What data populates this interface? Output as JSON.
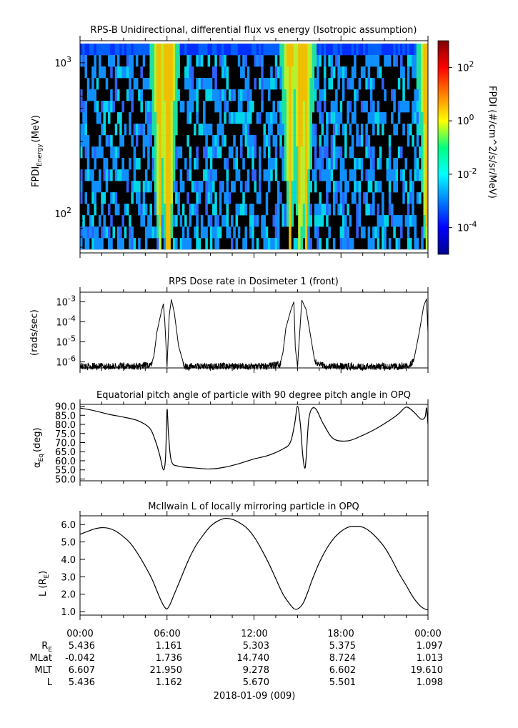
{
  "chart_data": [
    {
      "type": "heatmap",
      "title": "RPS-B  Unidirectional, differential flux vs energy (Isotropic assumption)",
      "ylabel": "FPDI",
      "ylabel_sub": "Energy",
      "ylabel_unit": "(MeV)",
      "y_scale": "log",
      "ylim": [
        55,
        1400
      ],
      "y_ticks": [
        {
          "value": 100,
          "base": "10",
          "exp": "2"
        },
        {
          "value": 1000,
          "base": "10",
          "exp": "3"
        }
      ],
      "colorbar": {
        "label": "FPDI (#/cm^2/s/sr/MeV)",
        "scale": "log",
        "range": [
          1e-05,
          1000
        ],
        "ticks": [
          {
            "value": 0.0001,
            "base": "10",
            "exp": "-4"
          },
          {
            "value": 0.01,
            "base": "10",
            "exp": "-2"
          },
          {
            "value": 1,
            "base": "10",
            "exp": "0"
          },
          {
            "value": 100,
            "base": "10",
            "exp": "2"
          }
        ]
      },
      "bright_bands_hours": [
        5.4,
        5.9,
        6.1,
        14.4,
        15.1,
        15.5,
        23.8
      ]
    },
    {
      "type": "line",
      "title": "RPS  Dose rate in Dosimeter 1 (front)",
      "ylabel": "(rads/sec)",
      "y_scale": "log",
      "ylim": [
        5e-07,
        0.003
      ],
      "y_ticks": [
        {
          "value": 1e-06,
          "base": "10",
          "exp": "-6"
        },
        {
          "value": 1e-05,
          "base": "10",
          "exp": "-5"
        },
        {
          "value": 0.0001,
          "base": "10",
          "exp": "-4"
        },
        {
          "value": 0.001,
          "base": "10",
          "exp": "-3"
        }
      ],
      "x_hours": [
        0,
        1,
        2,
        3,
        4,
        4.9,
        5.1,
        5.3,
        5.6,
        5.75,
        5.85,
        6.0,
        6.15,
        6.3,
        6.5,
        6.8,
        7.2,
        8,
        10,
        12,
        13,
        13.8,
        14.0,
        14.2,
        14.55,
        14.75,
        14.85,
        15.0,
        15.3,
        15.6,
        15.9,
        16.2,
        17,
        19,
        21,
        22.5,
        23.0,
        23.4,
        23.7,
        23.9,
        24.0
      ],
      "values": [
        6e-07,
        6e-07,
        6e-07,
        6e-07,
        6e-07,
        7e-07,
        2e-06,
        3e-05,
        0.0003,
        0.0008,
        0.0001,
        6e-07,
        0.0002,
        0.0013,
        0.0003,
        6e-06,
        6e-07,
        6e-07,
        6e-07,
        6e-07,
        6e-07,
        8e-07,
        3e-06,
        5e-05,
        0.0004,
        0.001,
        5e-06,
        6e-07,
        0.0012,
        0.0004,
        2e-05,
        1e-06,
        6e-07,
        6e-07,
        6e-07,
        6e-07,
        1e-06,
        3e-05,
        0.0006,
        0.0014,
        3e-05
      ]
    },
    {
      "type": "line",
      "title": "Equatorial pitch angle of particle with 90 degree pitch angle in OPQ",
      "ylabel": "α",
      "ylabel_sub": "Eq",
      "ylabel_unit": "(deg)",
      "ylim": [
        49,
        91
      ],
      "y_ticks": [
        50,
        55,
        60,
        65,
        70,
        75,
        80,
        85,
        90
      ],
      "x_hours": [
        0,
        1,
        2,
        3,
        4,
        4.8,
        5.2,
        5.5,
        5.75,
        5.9,
        6.0,
        6.1,
        6.3,
        6.8,
        8,
        9,
        10,
        11,
        12,
        13,
        14,
        14.5,
        14.8,
        15.0,
        15.2,
        15.35,
        15.5,
        15.6,
        15.8,
        16.2,
        16.8,
        17.5,
        18.5,
        19.5,
        20.5,
        21.5,
        22.0,
        22.5,
        23.0,
        23.5,
        23.8,
        23.9,
        24.0
      ],
      "values": [
        89,
        87.5,
        85.5,
        84,
        82,
        78,
        71,
        63,
        55,
        62,
        88,
        75,
        60,
        57,
        56,
        55.5,
        56.5,
        58.5,
        61,
        63,
        66.5,
        70,
        80,
        90,
        80,
        64,
        56,
        62,
        84,
        89,
        80,
        72,
        71,
        74,
        78,
        83,
        86,
        89.5,
        87,
        83,
        84,
        89,
        80
      ]
    },
    {
      "type": "line",
      "title": "McIlwain L of locally mirroring particle in OPQ",
      "ylabel": "L (R",
      "ylabel_sub": "E",
      "ylabel_unit": ")",
      "ylim": [
        0.8,
        6.5
      ],
      "y_ticks": [
        1,
        2,
        3,
        4,
        5,
        6
      ],
      "x_hours": [
        0,
        0.5,
        1,
        1.5,
        2,
        2.5,
        3,
        3.5,
        4,
        4.5,
        5,
        5.5,
        5.8,
        6.0,
        6.2,
        6.5,
        7,
        7.5,
        8,
        8.5,
        9,
        9.5,
        10,
        10.5,
        11,
        11.5,
        12,
        12.5,
        13,
        13.5,
        14,
        14.5,
        14.8,
        15.1,
        15.4,
        15.7,
        16,
        16.5,
        17,
        17.5,
        18,
        18.5,
        19,
        19.5,
        20,
        20.5,
        21,
        21.5,
        22,
        22.5,
        23,
        23.5,
        23.8,
        24.0
      ],
      "values": [
        5.44,
        5.6,
        5.75,
        5.82,
        5.78,
        5.6,
        5.3,
        4.9,
        4.3,
        3.6,
        2.8,
        1.8,
        1.3,
        1.16,
        1.4,
        2.0,
        3.0,
        4.0,
        4.8,
        5.4,
        5.9,
        6.2,
        6.35,
        6.3,
        6.1,
        5.8,
        5.3,
        4.6,
        3.8,
        2.9,
        2.0,
        1.4,
        1.15,
        1.2,
        1.5,
        2.1,
        2.8,
        3.8,
        4.6,
        5.2,
        5.6,
        5.85,
        5.9,
        5.85,
        5.6,
        5.2,
        4.7,
        4.0,
        3.2,
        2.5,
        1.8,
        1.3,
        1.15,
        1.1
      ]
    }
  ],
  "x_axis": {
    "tick_labels": [
      "00:00",
      "06:00",
      "12:00",
      "18:00",
      "00:00"
    ],
    "date_label": "2018-01-09 (009)"
  },
  "ephemeris": {
    "rows": [
      {
        "label": "R",
        "sub": "E",
        "values": [
          "5.436",
          "1.161",
          "5.303",
          "5.375",
          "1.097"
        ]
      },
      {
        "label": "MLat",
        "sub": "",
        "values": [
          "-0.042",
          "1.736",
          "14.740",
          "8.724",
          "1.013"
        ]
      },
      {
        "label": "MLT",
        "sub": "",
        "values": [
          "6.607",
          "21.950",
          "9.278",
          "6.602",
          "19.610"
        ]
      },
      {
        "label": "L",
        "sub": "",
        "values": [
          "5.436",
          "1.162",
          "5.670",
          "5.501",
          "1.098"
        ]
      }
    ]
  }
}
